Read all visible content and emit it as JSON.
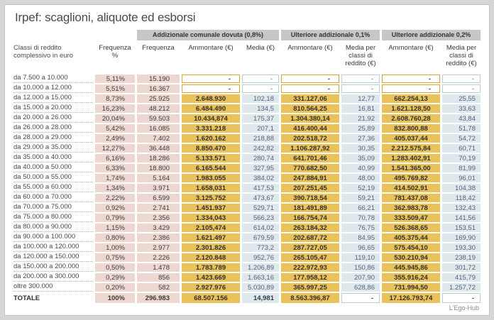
{
  "title": "Irpef: scaglioni, aliquote ed esborsi",
  "footer": "L'Ego-Hub",
  "colors": {
    "pink_cell": "#ecd8d1",
    "yellow_cell": "#e9c25c",
    "blue_cell": "#dee8ed",
    "group_header_bg": "#c7c7c7",
    "yellow_dash_border": "#d9a62e",
    "blue_dash_border": "#b9cdd6",
    "card_bg": "#ffffff",
    "page_bg": "#d6d6d6"
  },
  "chart_data": {
    "type": "table",
    "title": "Irpef: scaglioni, aliquote ed esborsi",
    "group_headers": [
      {
        "label": "Addizionale comunale dovuta (0,8%)",
        "spans_columns": [
          "Frequenza",
          "Ammontare (€)",
          "Media (€)"
        ]
      },
      {
        "label": "Ulteriore addizionale 0,1%",
        "spans_columns": [
          "Ammontare (€)",
          "Media per classi di reddito (€)"
        ]
      },
      {
        "label": "Ulteriore addizionale 0,2%",
        "spans_columns": [
          "Ammontare (€)",
          "Media per classi di reddito (€)"
        ]
      }
    ],
    "columns": [
      "Classi di reddito complessivo in euro",
      "Frequenza %",
      "Frequenza",
      "Ammontare (€)",
      "Media (€)",
      "Ammontare (€)",
      "Media per classi di reddito (€)",
      "Ammontare (€)",
      "Media per classi di reddito (€)"
    ],
    "rows": [
      [
        "da 7.500 a 10.000",
        "5,11%",
        "15.190",
        "-",
        "-",
        "-",
        "-",
        "-",
        "-"
      ],
      [
        "da 10.000 a 12.000",
        "5,51%",
        "16.367",
        "-",
        "-",
        "-",
        "-",
        "-",
        "-"
      ],
      [
        "da 12.000 a 15.000",
        "8,73%",
        "25.925",
        "2.648.930",
        "102,18",
        "331.127,06",
        "12,77",
        "662.254,13",
        "25,55"
      ],
      [
        "da 15.000 a 20.000",
        "16,23%",
        "48.212",
        "6.484.490",
        "134,5",
        "810.564,25",
        "16,81",
        "1.621.128,50",
        "33,63"
      ],
      [
        "da 20.000 a 26.000",
        "20,04%",
        "59.503",
        "10.434,874",
        "175,37",
        "1.304.380,14",
        "21,92",
        "2.608.760,28",
        "43,84"
      ],
      [
        "da 26.000 a 28.000",
        "5,42%",
        "16.085",
        "3.331.218",
        "207,1",
        "416.400,44",
        "25,89",
        "832.800,88",
        "51,78"
      ],
      [
        "da 28.000 a 29.000",
        "2,49%",
        "7.402",
        "1.620.162",
        "218,88",
        "202.518,72",
        "27,36",
        "405.037,44",
        "54,72"
      ],
      [
        "da 29.000 a 35.000",
        "12,27%",
        "36.448",
        "8.850.470",
        "242,82",
        "1.106.287,92",
        "30,35",
        "2.212.575,84",
        "60,71"
      ],
      [
        "da 35.000 a 40.000",
        "6,16%",
        "18.286",
        "5.133.571",
        "280,74",
        "641.701,46",
        "35,09",
        "1.283.402,91",
        "70,19"
      ],
      [
        "da 40.000 a 50.000",
        "6,33%",
        "18.800",
        "6.165.544",
        "327,95",
        "770.682,50",
        "40,99",
        "1.541.365,00",
        "81,99"
      ],
      [
        "da 50.000 a 55.000",
        "1,74%",
        "5.164",
        "1.983.055",
        "384,02",
        "247.884,91",
        "48,00",
        "495.769,82",
        "96,01"
      ],
      [
        "da 55.000 a 60.000",
        "1,34%",
        "3.971",
        "1.658,031",
        "417,53",
        "207.251,45",
        "52,19",
        "414.502,91",
        "104,38"
      ],
      [
        "da 60.000 a 70.000",
        "2,22%",
        "6.599",
        "3.125.752",
        "473,67",
        "390.718,54",
        "59,21",
        "781.437,08",
        "118,42"
      ],
      [
        "da 70.000 a 75.000",
        "0,92%",
        "2.741",
        "1.451.937",
        "529,71",
        "181.491,89",
        "66,21",
        "362.983,78",
        "132,43"
      ],
      [
        "da 75.000 a 80.000",
        "0,79%",
        "2.356",
        "1.334,043",
        "566,23",
        "166.754,74",
        "70,78",
        "333.509,47",
        "141,56"
      ],
      [
        "da 80.000 a 90.000",
        "1,15%",
        "3.429",
        "2.105,474",
        "614,02",
        "263.184,32",
        "76,75",
        "526.368,65",
        "153,51"
      ],
      [
        "da 90.000 a 100.000",
        "0,80%",
        "2.386",
        "1.621.497",
        "679,59",
        "202.687,72",
        "84,95",
        "405.375,44",
        "169,90"
      ],
      [
        "da 100.000 a 120.000",
        "1,00%",
        "2.977",
        "2.301.826",
        "773,2",
        "287.727,05",
        "96,65",
        "575.454,10",
        "193,30"
      ],
      [
        "da 120.000 a 150.000",
        "0,75%",
        "2.226",
        "2.120.848",
        "952,76",
        "265.105,47",
        "119,10",
        "530.210,94",
        "238,19"
      ],
      [
        "da 150.000 a 200.000",
        "0,50%",
        "1.478",
        "1.783.789",
        "1.206,89",
        "222.972,93",
        "150,86",
        "445.945,86",
        "301,72"
      ],
      [
        "da 200.000 a 300.000",
        "0,29%",
        "856",
        "1.423.669",
        "1.663,16",
        "177.958,12",
        "207,90",
        "355.916,24",
        "415,79"
      ],
      [
        "oltre 300.000",
        "0,20%",
        "582",
        "2.927.976",
        "5.030,89",
        "365.997,25",
        "628,86",
        "731.994,50",
        "1.257,72"
      ]
    ],
    "total_row": [
      "TOTALE",
      "100%",
      "296.983",
      "68.507.156",
      "14,981",
      "8.563.396,87",
      "-",
      "17.126.793,74",
      "-"
    ]
  }
}
